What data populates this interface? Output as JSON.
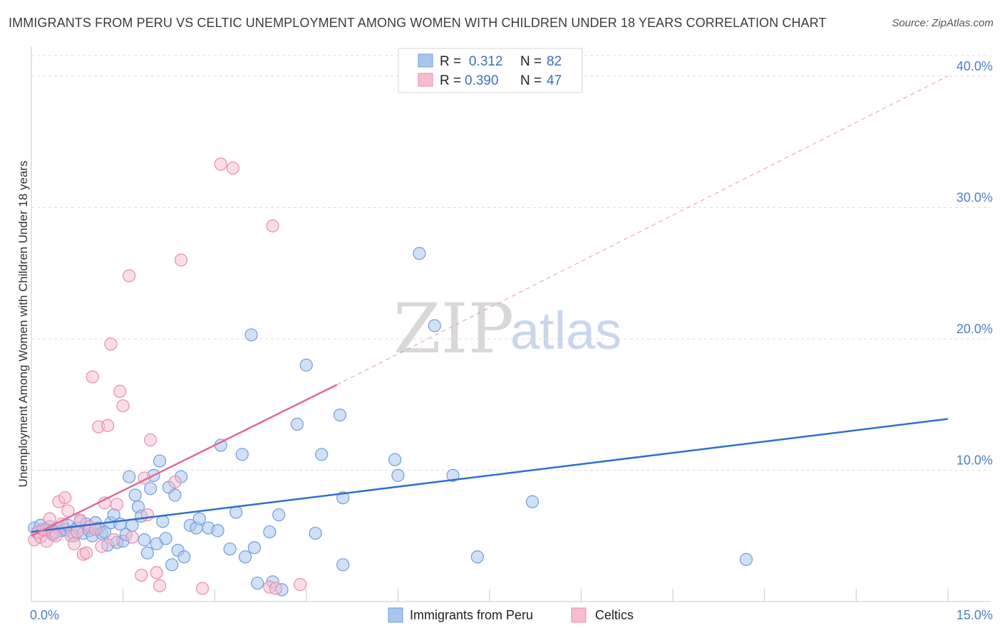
{
  "title": "IMMIGRANTS FROM PERU VS CELTIC UNEMPLOYMENT AMONG WOMEN WITH CHILDREN UNDER 18 YEARS CORRELATION CHART",
  "source": "Source: ZipAtlas.com",
  "watermark": {
    "zip": "ZIP",
    "atlas": "atlas"
  },
  "legend": {
    "r_label": "R =",
    "n_label": "N =",
    "series": [
      {
        "name": "Immigrants from Peru",
        "r": "0.312",
        "n": "82"
      },
      {
        "name": "Celtics",
        "r": "0.390",
        "n": "47"
      }
    ]
  },
  "colors": {
    "blue_fill": "#a9c6ee",
    "blue_stroke": "#6f9edb",
    "blue_line": "#2f6fd0",
    "pink_fill": "#f6bcd0",
    "pink_stroke": "#e98cab",
    "pink_line": "#e06a94",
    "grid": "#dddddd",
    "tick_text": "#4a80c8"
  },
  "chart_data": {
    "type": "scatter",
    "title": "IMMIGRANTS FROM PERU VS CELTIC UNEMPLOYMENT AMONG WOMEN WITH CHILDREN UNDER 18 YEARS CORRELATION CHART",
    "xlabel": "",
    "ylabel": "Unemployment Among Women with Children Under 18 years",
    "xlim": [
      0,
      15
    ],
    "ylim": [
      0,
      42
    ],
    "x_tick_labels": [
      "0.0%",
      "15.0%"
    ],
    "y_ticks": [
      10,
      20,
      30,
      40
    ],
    "y_tick_labels": [
      "10.0%",
      "20.0%",
      "30.0%",
      "40.0%"
    ],
    "grid": true,
    "legend_position": "top-center",
    "series": [
      {
        "name": "Immigrants from Peru",
        "r": 0.312,
        "n": 82,
        "trend": {
          "x": [
            0.0,
            15.0
          ],
          "y": [
            5.3,
            13.9
          ],
          "style": "solid"
        },
        "points": [
          [
            0.05,
            5.6
          ],
          [
            0.1,
            5.2
          ],
          [
            0.15,
            5.8
          ],
          [
            0.2,
            5.4
          ],
          [
            0.25,
            5.5
          ],
          [
            0.3,
            5.7
          ],
          [
            0.35,
            5.1
          ],
          [
            0.4,
            5.3
          ],
          [
            0.45,
            5.6
          ],
          [
            0.5,
            5.4
          ],
          [
            0.55,
            5.5
          ],
          [
            0.6,
            5.8
          ],
          [
            0.65,
            5.3
          ],
          [
            0.7,
            5.0
          ],
          [
            0.75,
            5.6
          ],
          [
            0.8,
            6.1
          ],
          [
            0.85,
            5.2
          ],
          [
            0.9,
            5.9
          ],
          [
            0.95,
            5.4
          ],
          [
            1.0,
            5.0
          ],
          [
            1.05,
            6.0
          ],
          [
            1.1,
            5.6
          ],
          [
            1.15,
            5.2
          ],
          [
            1.2,
            5.3
          ],
          [
            1.25,
            4.3
          ],
          [
            1.3,
            6.0
          ],
          [
            1.35,
            6.6
          ],
          [
            1.4,
            4.5
          ],
          [
            1.45,
            5.9
          ],
          [
            1.5,
            4.6
          ],
          [
            1.55,
            5.1
          ],
          [
            1.6,
            9.5
          ],
          [
            1.65,
            5.8
          ],
          [
            1.7,
            8.1
          ],
          [
            1.75,
            7.2
          ],
          [
            1.8,
            6.5
          ],
          [
            1.85,
            4.7
          ],
          [
            1.9,
            3.7
          ],
          [
            1.95,
            8.6
          ],
          [
            2.0,
            9.6
          ],
          [
            2.05,
            4.4
          ],
          [
            2.1,
            10.7
          ],
          [
            2.15,
            6.1
          ],
          [
            2.2,
            4.8
          ],
          [
            2.25,
            8.7
          ],
          [
            2.3,
            2.8
          ],
          [
            2.35,
            8.1
          ],
          [
            2.4,
            3.9
          ],
          [
            2.45,
            9.5
          ],
          [
            2.5,
            3.4
          ],
          [
            2.6,
            5.8
          ],
          [
            2.7,
            5.6
          ],
          [
            2.75,
            6.3
          ],
          [
            2.9,
            5.6
          ],
          [
            3.05,
            5.4
          ],
          [
            3.1,
            11.9
          ],
          [
            3.25,
            4.0
          ],
          [
            3.35,
            6.8
          ],
          [
            3.45,
            11.2
          ],
          [
            3.5,
            3.4
          ],
          [
            3.6,
            20.3
          ],
          [
            3.65,
            4.1
          ],
          [
            3.7,
            1.4
          ],
          [
            3.9,
            5.3
          ],
          [
            3.95,
            1.5
          ],
          [
            4.05,
            6.6
          ],
          [
            4.1,
            0.9
          ],
          [
            4.35,
            13.5
          ],
          [
            4.5,
            18.0
          ],
          [
            4.65,
            5.2
          ],
          [
            4.75,
            11.2
          ],
          [
            5.05,
            14.2
          ],
          [
            5.1,
            2.8
          ],
          [
            5.1,
            7.9
          ],
          [
            5.95,
            10.8
          ],
          [
            6.0,
            9.6
          ],
          [
            6.35,
            26.5
          ],
          [
            6.6,
            21.0
          ],
          [
            6.9,
            9.6
          ],
          [
            7.3,
            3.4
          ],
          [
            8.2,
            7.6
          ],
          [
            11.7,
            3.2
          ]
        ]
      },
      {
        "name": "Celtics",
        "r": 0.39,
        "n": 47,
        "trend": {
          "x": [
            0.0,
            5.0
          ],
          "y": [
            5.0,
            16.5
          ],
          "style": "solid",
          "extension": {
            "x": [
              5.0,
              15.0
            ],
            "y": [
              16.5,
              40.0
            ],
            "style": "dashed"
          }
        },
        "points": [
          [
            0.05,
            4.7
          ],
          [
            0.1,
            5.3
          ],
          [
            0.15,
            4.9
          ],
          [
            0.2,
            5.5
          ],
          [
            0.25,
            4.6
          ],
          [
            0.3,
            6.3
          ],
          [
            0.35,
            5.2
          ],
          [
            0.4,
            5.0
          ],
          [
            0.45,
            7.6
          ],
          [
            0.5,
            5.9
          ],
          [
            0.55,
            7.9
          ],
          [
            0.6,
            6.9
          ],
          [
            0.65,
            5.0
          ],
          [
            0.7,
            4.4
          ],
          [
            0.75,
            5.3
          ],
          [
            0.8,
            6.2
          ],
          [
            0.85,
            3.6
          ],
          [
            0.9,
            3.7
          ],
          [
            0.95,
            5.7
          ],
          [
            1.0,
            17.1
          ],
          [
            1.05,
            5.5
          ],
          [
            1.1,
            13.3
          ],
          [
            1.15,
            4.2
          ],
          [
            1.2,
            7.5
          ],
          [
            1.25,
            13.4
          ],
          [
            1.3,
            19.6
          ],
          [
            1.35,
            4.7
          ],
          [
            1.4,
            7.4
          ],
          [
            1.45,
            16.0
          ],
          [
            1.5,
            14.9
          ],
          [
            1.6,
            24.8
          ],
          [
            1.65,
            4.9
          ],
          [
            1.8,
            2.0
          ],
          [
            1.85,
            9.4
          ],
          [
            1.9,
            6.6
          ],
          [
            1.95,
            12.3
          ],
          [
            2.05,
            2.2
          ],
          [
            2.1,
            1.2
          ],
          [
            2.35,
            9.1
          ],
          [
            2.45,
            26.0
          ],
          [
            2.8,
            1.0
          ],
          [
            3.1,
            33.3
          ],
          [
            3.3,
            33.0
          ],
          [
            3.9,
            1.1
          ],
          [
            3.95,
            28.6
          ],
          [
            4.0,
            1.0
          ],
          [
            4.4,
            1.3
          ]
        ]
      }
    ]
  }
}
